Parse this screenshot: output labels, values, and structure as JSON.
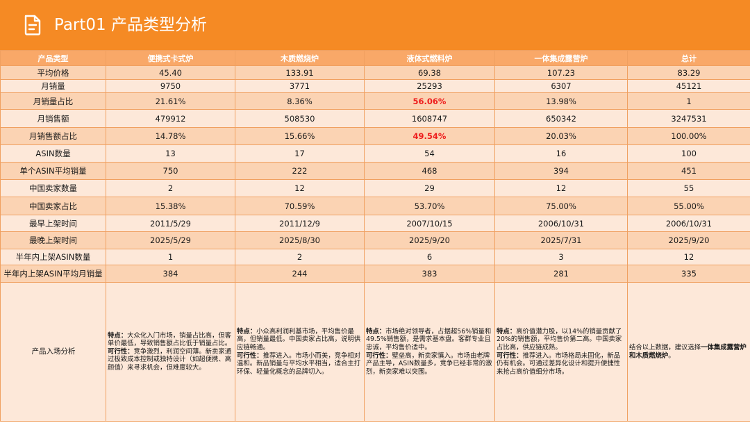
{
  "header": {
    "title": "Part01  产品类型分析",
    "icon": "document-icon",
    "background": "#f58a24"
  },
  "table": {
    "columns": [
      "产品类型",
      "便携式卡式炉",
      "木质燃烧炉",
      "液体式燃料炉",
      "一体集成露营炉",
      "总计"
    ],
    "rows": [
      {
        "label": "平均价格",
        "values": [
          "45.40",
          "133.91",
          "69.38",
          "107.23",
          "83.29"
        ],
        "shade": "dark"
      },
      {
        "label": "月销量",
        "values": [
          "9750",
          "3771",
          "25293",
          "6307",
          "45121"
        ],
        "shade": "light"
      },
      {
        "label": "月销量占比",
        "values": [
          "21.61%",
          "8.36%",
          "56.06%",
          "13.98%",
          "1"
        ],
        "shade": "dark",
        "highlight_index": 2
      },
      {
        "label": "月销售额",
        "values": [
          "479912",
          "508530",
          "1608747",
          "650342",
          "3247531"
        ],
        "shade": "light"
      },
      {
        "label": "月销售额占比",
        "values": [
          "14.78%",
          "15.66%",
          "49.54%",
          "20.03%",
          "100.00%"
        ],
        "shade": "dark",
        "highlight_index": 2
      },
      {
        "label": "ASIN数量",
        "values": [
          "13",
          "17",
          "54",
          "16",
          "100"
        ],
        "shade": "light"
      },
      {
        "label": "单个ASIN平均销量",
        "values": [
          "750",
          "222",
          "468",
          "394",
          "451"
        ],
        "shade": "dark"
      },
      {
        "label": "中国卖家数量",
        "values": [
          "2",
          "12",
          "29",
          "12",
          "55"
        ],
        "shade": "light"
      },
      {
        "label": "中国卖家占比",
        "values": [
          "15.38%",
          "70.59%",
          "53.70%",
          "75.00%",
          "55.00%"
        ],
        "shade": "dark"
      },
      {
        "label": "最早上架时间",
        "values": [
          "2011/5/29",
          "2011/12/9",
          "2007/10/15",
          "2006/10/31",
          "2006/10/31"
        ],
        "shade": "light"
      },
      {
        "label": "最晚上架时间",
        "values": [
          "2025/5/29",
          "2025/8/30",
          "2025/9/20",
          "2025/7/31",
          "2025/9/20"
        ],
        "shade": "dark"
      },
      {
        "label": "半年内上架ASIN数量",
        "values": [
          "1",
          "2",
          "6",
          "3",
          "12"
        ],
        "shade": "light"
      },
      {
        "label": "半年内上架ASIN平均月销量",
        "values": [
          "384",
          "244",
          "383",
          "281",
          "335"
        ],
        "shade": "dark"
      }
    ],
    "highlight_color": "#ee1c1c",
    "analysis": {
      "label": "产品入场分析",
      "cells": [
        {
          "feature_key": "特点：",
          "feature_text": "大众化入门市场，销量占比高，但客单价最低，导致销售额占比低于销量占比。",
          "feasibility_key": "可行性：",
          "feasibility_text": "竞争激烈，利润空间薄。新卖家通过极致成本控制或独特设计（如超便携、高颜值）来寻求机会，但难度较大。"
        },
        {
          "feature_key": "特点：",
          "feature_text": "小众高利润利基市场，平均售价最高，但销量最低。中国卖家占比高，说明供应链畅通。",
          "feasibility_key": "可行性：",
          "feasibility_text": "推荐进入。市场小而美，竞争相对温和。新品销量与平均水平相当，适合主打环保、轻量化概念的品牌切入。"
        },
        {
          "feature_key": "特点：",
          "feature_text": "市场绝对领导者，占据超56%销量和49.5%销售额，是需求基本盘。客群专业且忠诚，平均售价适中。",
          "feasibility_key": "可行性：",
          "feasibility_text": "壁垒高，新卖家慎入。市场由老牌产品主导，ASIN数量多，竞争已经非常的激烈，新卖家难以突围。"
        },
        {
          "feature_key": "特点：",
          "feature_text": "高价值潜力股，以14%的销量贡献了20%的销售额，平均售价第二高。中国卖家占比高，供应链成熟。",
          "feasibility_key": "可行性：",
          "feasibility_text": "推荐进入。市场格局未固化，新品仍有机会。可通过差异化设计和提升便捷性来抢占高价值细分市场。"
        }
      ],
      "summary_prefix": "结合以上数据，建议选择",
      "summary_bold": "一体集成露营炉和木质燃烧炉",
      "summary_suffix": "。"
    }
  }
}
